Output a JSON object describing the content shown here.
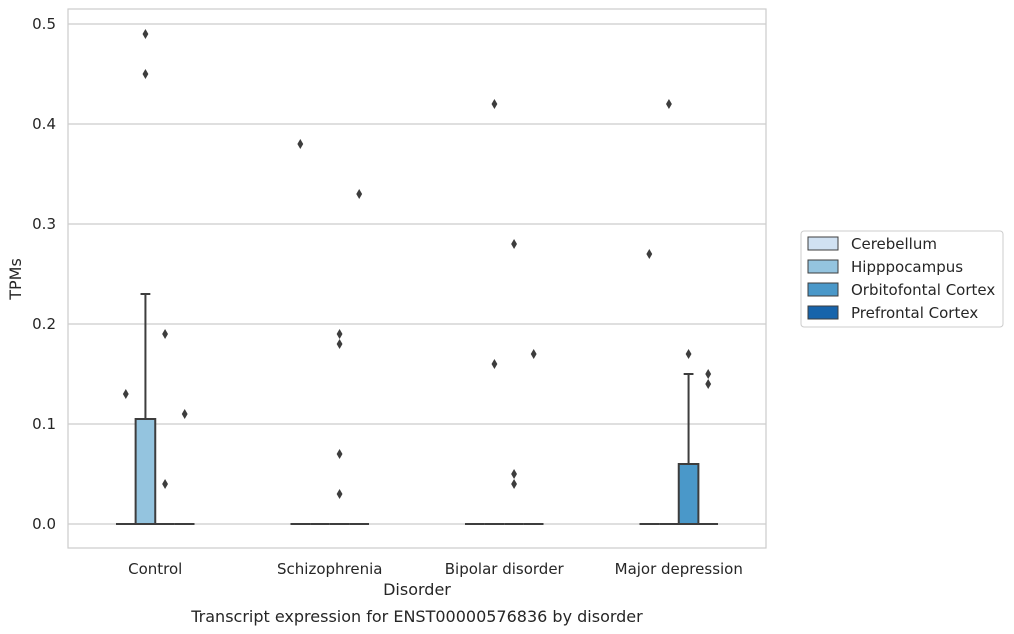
{
  "chart_data": {
    "type": "box",
    "caption": "Transcript expression for ENST00000576836 by disorder",
    "xlabel": "Disorder",
    "ylabel": "TPMs",
    "ylim": [
      -0.023,
      0.515
    ],
    "yticks": [
      0.0,
      0.1,
      0.2,
      0.3,
      0.4,
      0.5
    ],
    "ytick_labels": [
      "0.0",
      "0.1",
      "0.2",
      "0.3",
      "0.4",
      "0.5"
    ],
    "grid": true,
    "legend_position": "right",
    "categories": [
      "Control",
      "Schizophrenia",
      "Bipolar disorder",
      "Major depression"
    ],
    "series": [
      {
        "name": "Cerebellum",
        "color": "#d0e1f2",
        "boxes": [
          {
            "q1": 0,
            "median": 0,
            "q3": 0,
            "whisker_low": 0,
            "whisker_high": 0,
            "outliers": [
              0.13
            ]
          },
          {
            "q1": 0,
            "median": 0,
            "q3": 0,
            "whisker_low": 0,
            "whisker_high": 0,
            "outliers": [
              0.38
            ]
          },
          {
            "q1": 0,
            "median": 0,
            "q3": 0,
            "whisker_low": 0,
            "whisker_high": 0,
            "outliers": []
          },
          {
            "q1": 0,
            "median": 0,
            "q3": 0,
            "whisker_low": 0,
            "whisker_high": 0,
            "outliers": [
              0.27
            ]
          }
        ]
      },
      {
        "name": "Hipppocampus",
        "color": "#94c4df",
        "boxes": [
          {
            "q1": 0,
            "median": 0,
            "q3": 0.105,
            "whisker_low": 0,
            "whisker_high": 0.23,
            "outliers": [
              0.45,
              0.49
            ]
          },
          {
            "q1": 0,
            "median": 0,
            "q3": 0,
            "whisker_low": 0,
            "whisker_high": 0,
            "outliers": []
          },
          {
            "q1": 0,
            "median": 0,
            "q3": 0,
            "whisker_low": 0,
            "whisker_high": 0,
            "outliers": [
              0.16,
              0.42
            ]
          },
          {
            "q1": 0,
            "median": 0,
            "q3": 0,
            "whisker_low": 0,
            "whisker_high": 0,
            "outliers": [
              0.42
            ]
          }
        ]
      },
      {
        "name": "Orbitofontal Cortex",
        "color": "#4a98c9",
        "boxes": [
          {
            "q1": 0,
            "median": 0,
            "q3": 0,
            "whisker_low": 0,
            "whisker_high": 0,
            "outliers": [
              0.04,
              0.19
            ]
          },
          {
            "q1": 0,
            "median": 0,
            "q3": 0,
            "whisker_low": 0,
            "whisker_high": 0,
            "outliers": [
              0.03,
              0.07,
              0.18,
              0.19
            ]
          },
          {
            "q1": 0,
            "median": 0,
            "q3": 0,
            "whisker_low": 0,
            "whisker_high": 0,
            "outliers": [
              0.04,
              0.05,
              0.28
            ]
          },
          {
            "q1": 0,
            "median": 0,
            "q3": 0.06,
            "whisker_low": 0,
            "whisker_high": 0.15,
            "outliers": [
              0.17
            ]
          }
        ]
      },
      {
        "name": "Prefrontal Cortex",
        "color": "#1764ab",
        "boxes": [
          {
            "q1": 0,
            "median": 0,
            "q3": 0,
            "whisker_low": 0,
            "whisker_high": 0,
            "outliers": [
              0.11
            ]
          },
          {
            "q1": 0,
            "median": 0,
            "q3": 0,
            "whisker_low": 0,
            "whisker_high": 0,
            "outliers": [
              0.33
            ]
          },
          {
            "q1": 0,
            "median": 0,
            "q3": 0,
            "whisker_low": 0,
            "whisker_high": 0,
            "outliers": [
              0.17
            ]
          },
          {
            "q1": 0,
            "median": 0,
            "q3": 0,
            "whisker_low": 0,
            "whisker_high": 0,
            "outliers": [
              0.14,
              0.15
            ]
          }
        ]
      }
    ]
  }
}
